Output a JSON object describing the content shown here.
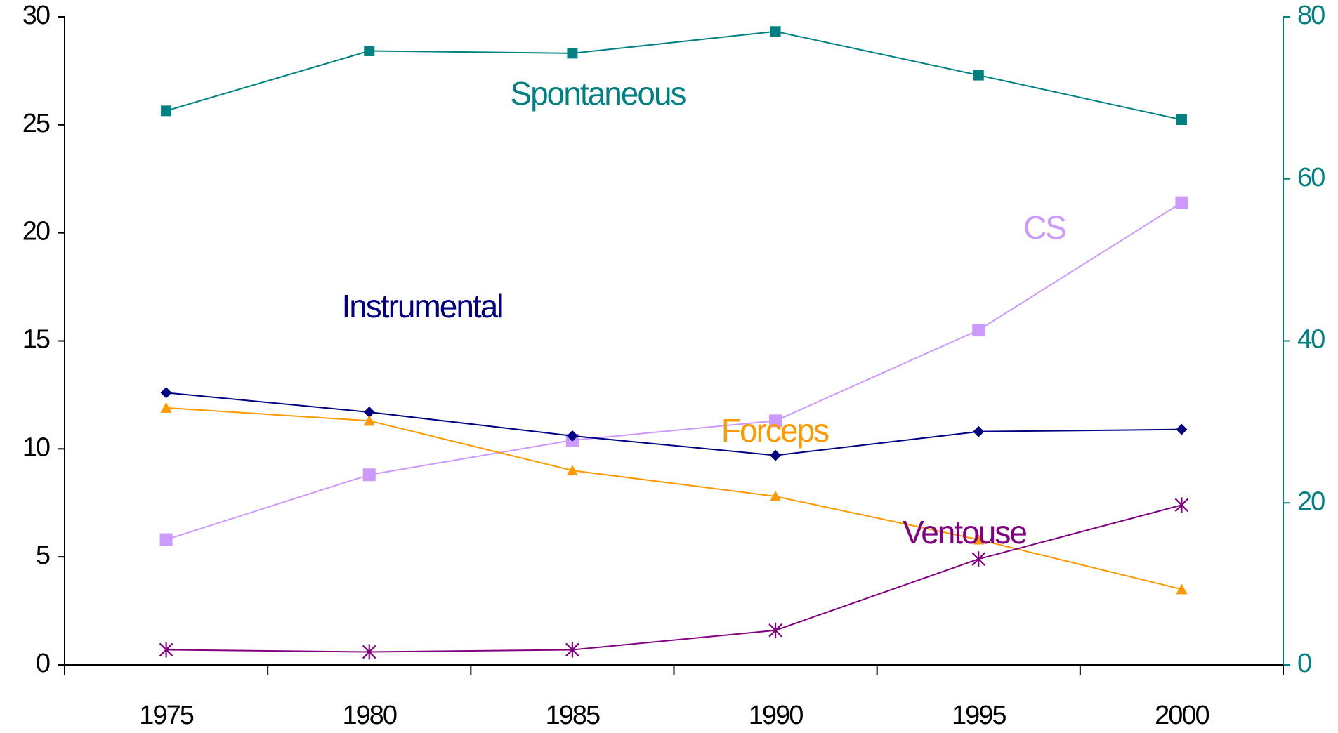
{
  "chart_data": {
    "type": "line",
    "categories": [
      "1975",
      "1980",
      "1985",
      "1990",
      "1995",
      "2000"
    ],
    "series": [
      {
        "name": "Spontaneous",
        "color": "#008080",
        "axis": "y2",
        "marker": "square",
        "values": [
          68.4,
          75.8,
          75.5,
          78.2,
          72.8,
          67.3
        ]
      },
      {
        "name": "CS",
        "color": "#cc99ff",
        "marker": "square",
        "values": [
          5.8,
          8.8,
          10.4,
          11.3,
          15.5,
          21.4
        ]
      },
      {
        "name": "Instrumental",
        "color": "#000080",
        "marker": "diamond",
        "values": [
          12.6,
          11.7,
          10.6,
          9.7,
          10.8,
          10.9
        ]
      },
      {
        "name": "Forceps",
        "color": "#ff9900",
        "marker": "triangle",
        "values": [
          11.9,
          11.3,
          9.0,
          7.8,
          5.8,
          3.5
        ]
      },
      {
        "name": "Ventouse",
        "color": "#800080",
        "marker": "asterisk",
        "values": [
          0.7,
          0.6,
          0.7,
          1.6,
          4.9,
          7.4
        ]
      }
    ],
    "ylim": [
      0,
      30
    ],
    "yticks": [
      0,
      5,
      10,
      15,
      20,
      25,
      30
    ],
    "y2lim": [
      0,
      80
    ],
    "y2ticks": [
      0,
      20,
      40,
      60,
      80
    ],
    "y2color": "#008080"
  }
}
